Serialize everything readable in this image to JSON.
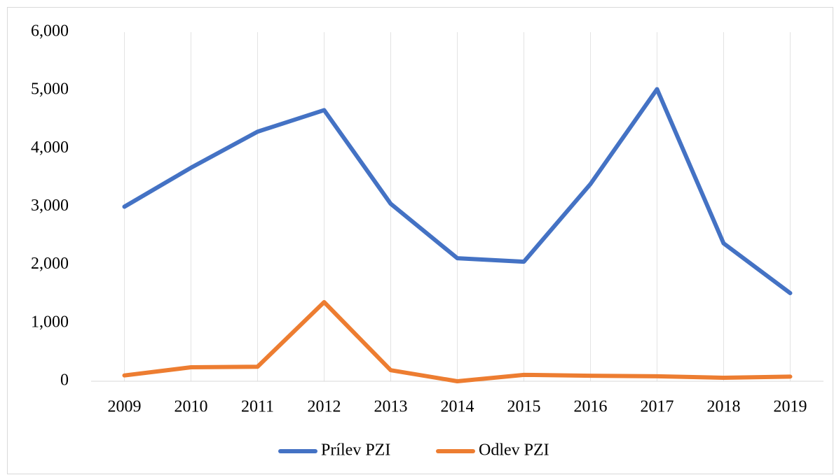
{
  "chart_data": {
    "type": "line",
    "categories": [
      "2009",
      "2010",
      "2011",
      "2012",
      "2013",
      "2014",
      "2015",
      "2016",
      "2017",
      "2018",
      "2019"
    ],
    "series": [
      {
        "name": "Prílev PZI",
        "color": "#4472c4",
        "values": [
          3000,
          3670,
          4290,
          4660,
          3050,
          2115,
          2055,
          3390,
          5020,
          2370,
          1515
        ]
      },
      {
        "name": "Odlev PZI",
        "color": "#ed7d31",
        "values": [
          100,
          240,
          250,
          1360,
          190,
          0,
          110,
          95,
          85,
          60,
          80
        ]
      }
    ],
    "ylim": [
      0,
      6000
    ],
    "yticks": [
      0,
      {
        "value": 1000,
        "label": "1,000"
      },
      {
        "value": 2000,
        "label": "2,000"
      },
      {
        "value": 3000,
        "label": "3,000"
      },
      {
        "value": 4000,
        "label": "4,000"
      },
      {
        "value": 5000,
        "label": "5,000"
      },
      {
        "value": 6000,
        "label": "6,000"
      }
    ],
    "legend": "bottom"
  }
}
